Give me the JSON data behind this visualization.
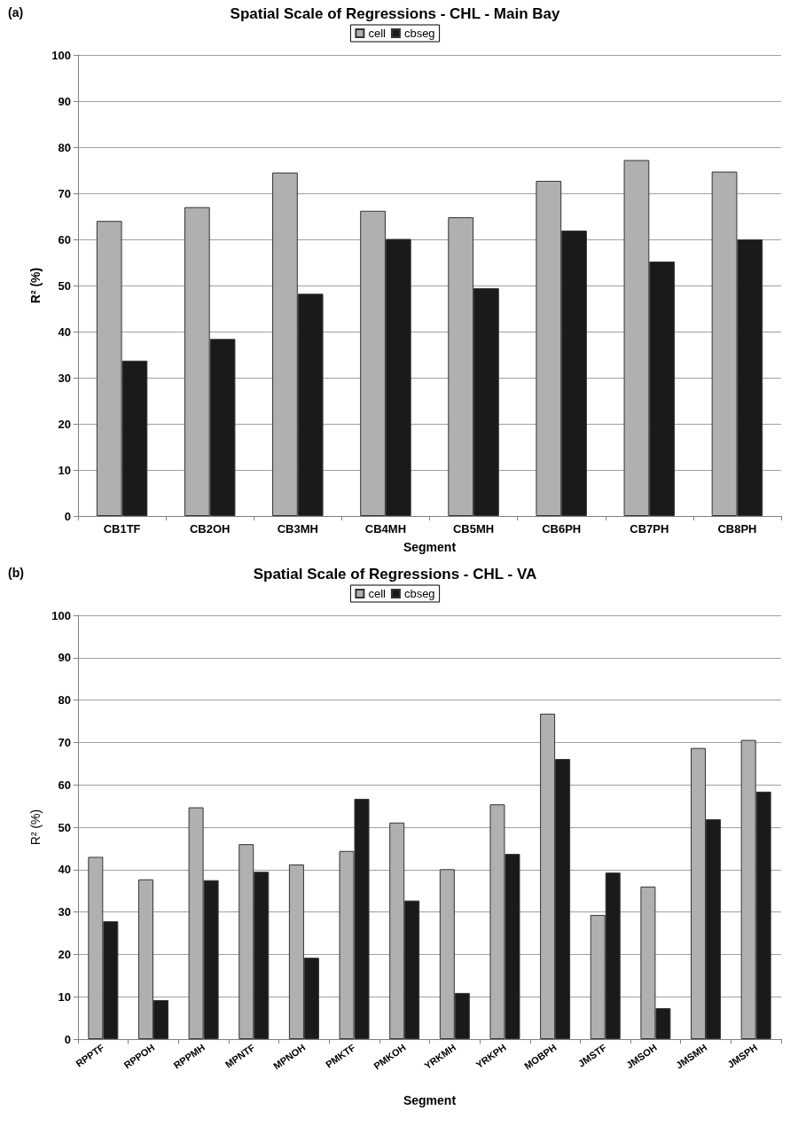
{
  "chart_data": [
    {
      "type": "bar",
      "title": "Spatial Scale of Regressions - CHL - Main Bay",
      "xlabel": "Segment",
      "ylabel": "R² (%)",
      "annotations": [
        "(a)"
      ],
      "categories": [
        "CB1TF",
        "CB2OH",
        "CB3MH",
        "CB4MH",
        "CB5MH",
        "CB6PH",
        "CB7PH",
        "CB8PH"
      ],
      "series": [
        {
          "name": "cell",
          "color": "#b0b0b0",
          "values": [
            64,
            67,
            74.5,
            66.2,
            64.8,
            72.7,
            77.2,
            74.7
          ]
        },
        {
          "name": "cbseg",
          "color": "#1a1a1a",
          "values": [
            33.7,
            38.4,
            48.2,
            60.1,
            49.4,
            61.9,
            55.2,
            60
          ]
        }
      ],
      "ylim": [
        0,
        100
      ],
      "yticks": [
        0,
        10,
        20,
        30,
        40,
        50,
        60,
        70,
        80,
        90,
        100
      ],
      "grid": "y",
      "legend": "top"
    },
    {
      "type": "bar",
      "title": "Spatial Scale of Regressions - CHL - VA",
      "xlabel": "Segment",
      "ylabel": "R² (%)",
      "annotations": [
        "(b)"
      ],
      "categories": [
        "RPPTF",
        "RPPOH",
        "RPPMH",
        "MPNTF",
        "MPNOH",
        "PMKTF",
        "PMKOH",
        "YRKMH",
        "YRKPH",
        "MOBPH",
        "JMSTF",
        "JMSOH",
        "JMSMH",
        "JMSPH"
      ],
      "series": [
        {
          "name": "cell",
          "color": "#b0b0b0",
          "values": [
            43,
            37.7,
            54.7,
            46,
            41.2,
            44.4,
            51.1,
            40.1,
            55.4,
            76.8,
            29.3,
            36,
            68.7,
            70.6
          ]
        },
        {
          "name": "cbseg",
          "color": "#1a1a1a",
          "values": [
            27.8,
            9.2,
            37.5,
            39.5,
            19.2,
            56.7,
            32.7,
            10.9,
            43.7,
            66.1,
            39.3,
            7.3,
            51.9,
            58.4
          ]
        }
      ],
      "ylim": [
        0,
        100
      ],
      "yticks": [
        0,
        10,
        20,
        30,
        40,
        50,
        60,
        70,
        80,
        90,
        100
      ],
      "grid": "y",
      "legend": "top"
    }
  ]
}
